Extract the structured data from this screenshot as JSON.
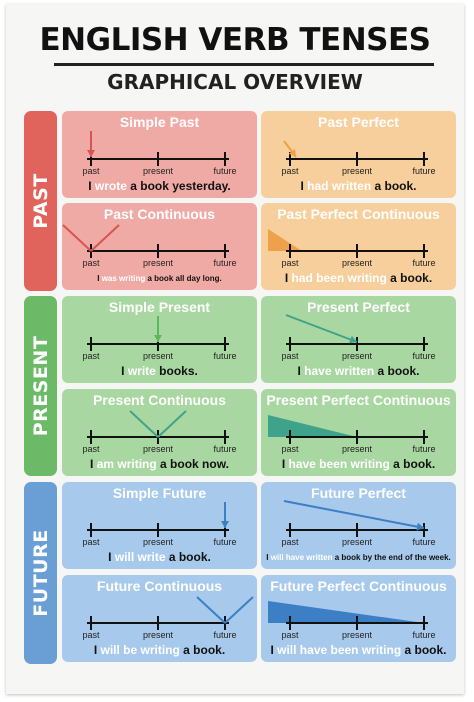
{
  "title": "ENGLISH VERB TENSES",
  "subtitle": "GRAPHICAL OVERVIEW",
  "timeline_labels": [
    "past",
    "present",
    "future"
  ],
  "bands": [
    {
      "label": "PAST",
      "color": "#e0645c"
    },
    {
      "label": "PRESENT",
      "color": "#6cba68"
    },
    {
      "label": "FUTURE",
      "color": "#6a9fd6"
    }
  ],
  "cards": [
    {
      "title": "Simple Past",
      "bg": "#f0aaa6",
      "accent": "#d9534f",
      "sentence": {
        "pre": "I ",
        "verb": "wrote",
        "post": " a book yesterday."
      }
    },
    {
      "title": "Past Perfect",
      "bg": "#f6cf9c",
      "accent": "#eda14a",
      "sentence": {
        "pre": "I ",
        "verb": "had written",
        "post": " a book."
      }
    },
    {
      "title": "Past Continuous",
      "bg": "#f0aaa6",
      "accent": "#d9534f",
      "sentence": {
        "pre": "I ",
        "verb": "was writing",
        "post": " a book all day long."
      }
    },
    {
      "title": "Past Perfect Continuous",
      "bg": "#f6cf9c",
      "accent": "#eda14a",
      "sentence": {
        "pre": "I ",
        "verb": "had been writing",
        "post": " a book."
      }
    },
    {
      "title": "Simple Present",
      "bg": "#a9d7a1",
      "accent": "#5cb85c",
      "sentence": {
        "pre": "I ",
        "verb": "write",
        "post": " books."
      }
    },
    {
      "title": "Present Perfect",
      "bg": "#a9d7a1",
      "accent": "#3fa38c",
      "sentence": {
        "pre": "I ",
        "verb": "have written",
        "post": " a book."
      }
    },
    {
      "title": "Present Continuous",
      "bg": "#a9d7a1",
      "accent": "#3fa38c",
      "sentence": {
        "pre": "I ",
        "verb": "am writing",
        "post": " a book now."
      }
    },
    {
      "title": "Present Perfect Continuous",
      "bg": "#a9d7a1",
      "accent": "#3fa38c",
      "sentence": {
        "pre": "I ",
        "verb": "have been writing",
        "post": " a book."
      }
    },
    {
      "title": "Simple Future",
      "bg": "#a7c9ec",
      "accent": "#3c7fc4",
      "sentence": {
        "pre": "I ",
        "verb": "will write",
        "post": " a book."
      }
    },
    {
      "title": "Future Perfect",
      "bg": "#a7c9ec",
      "accent": "#3c7fc4",
      "sentence": {
        "pre": "I ",
        "verb": "will have written",
        "post": " a book by the end of the week."
      }
    },
    {
      "title": "Future Continuous",
      "bg": "#a7c9ec",
      "accent": "#3c7fc4",
      "sentence": {
        "pre": "I ",
        "verb": "will be writing",
        "post": " a book."
      }
    },
    {
      "title": "Future Perfect Continuous",
      "bg": "#a7c9ec",
      "accent": "#3c7fc4",
      "sentence": {
        "pre": "I ",
        "verb": "will have been writing",
        "post": " a book."
      }
    }
  ]
}
